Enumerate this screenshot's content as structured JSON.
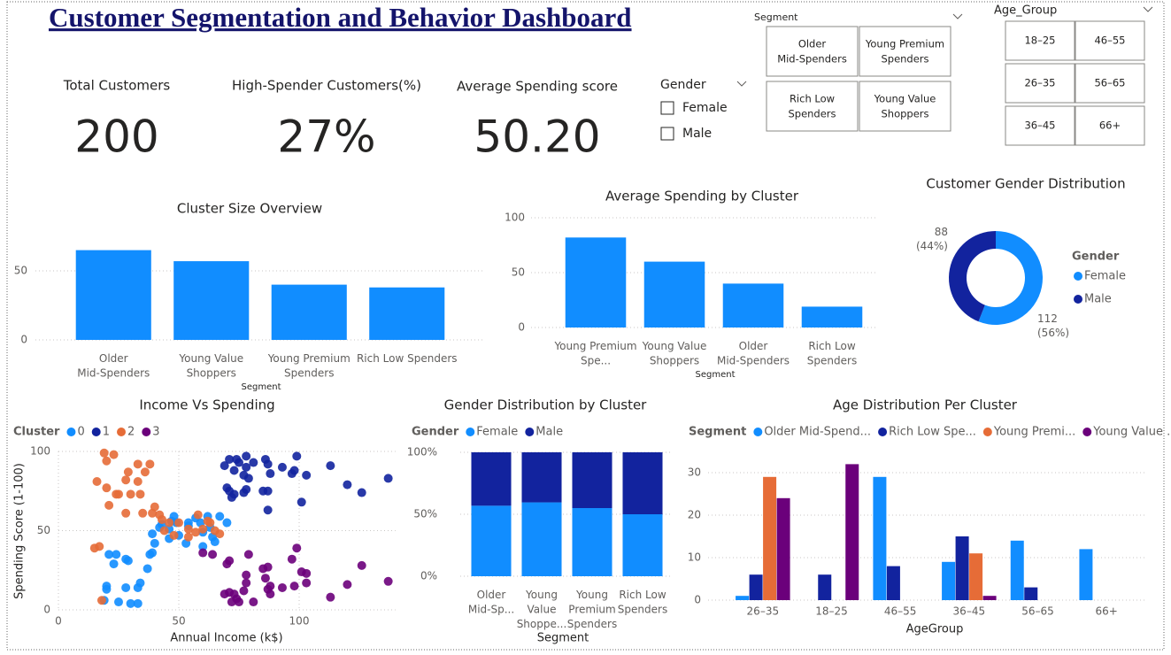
{
  "title": "Customer Segmentation and Behavior Dashboard",
  "kpis": [
    {
      "label": "Total Customers",
      "value": 200
    },
    {
      "label": "High-Spender Customers(%)",
      "value": "27%"
    },
    {
      "label": "Average Spending score",
      "value": "50.20"
    }
  ],
  "slicers": {
    "gender": {
      "title": "Gender",
      "options": [
        "Female",
        "Male"
      ]
    },
    "segment": {
      "title": "Segment",
      "options": [
        "Older Mid-Spenders",
        "Young Premium Spenders",
        "Rich Low Spenders",
        "Young Value Shoppers"
      ]
    },
    "age_group": {
      "title": "Age_Group",
      "options": [
        "18–25",
        "46–55",
        "26–35",
        "56–65",
        "36–45",
        "66+"
      ]
    }
  },
  "chart_data": [
    {
      "type": "bar",
      "title": "Cluster Size Overview",
      "x_label": "Segment",
      "categories": [
        "Older Mid-Spenders",
        "Young Value Shoppers",
        "Young Premium Spenders",
        "Rich Low Spenders"
      ],
      "values": [
        65,
        57,
        40,
        38
      ],
      "color": "#118DFF",
      "ylim": [
        0,
        75
      ],
      "yticks": [
        0,
        50
      ],
      "grid": true
    },
    {
      "type": "bar",
      "title": "Average Spending by Cluster",
      "x_label": "Segment",
      "categories": [
        "Young Premium Spe...",
        "Young Value Shoppers",
        "Older Mid-Spenders",
        "Rich Low Spenders"
      ],
      "values": [
        82,
        60,
        40,
        19
      ],
      "color": "#118DFF",
      "ylim": [
        0,
        100
      ],
      "yticks": [
        0,
        50,
        100
      ],
      "grid": true
    },
    {
      "type": "donut",
      "title": "Customer Gender Distribution",
      "legend_title": "Gender",
      "categories": [
        "Female",
        "Male"
      ],
      "values": [
        112,
        88
      ],
      "value_labels": [
        "112 (56%)",
        "88 (44%)"
      ],
      "colors": [
        "#118DFF",
        "#12239E"
      ]
    },
    {
      "type": "scatter",
      "title": "Income Vs Spending",
      "legend_title": "Cluster",
      "x_label": "Annual Income (k$)",
      "y_label": "Spending Score (1-100)",
      "xlim": [
        0,
        140
      ],
      "xticks": [
        0,
        50,
        100
      ],
      "ylim": [
        0,
        100
      ],
      "yticks": [
        0,
        50,
        100
      ],
      "grid": true,
      "series": [
        {
          "name": "0",
          "color": "#118DFF",
          "x": [
            19,
            20,
            20,
            21,
            23,
            24,
            25,
            28,
            28,
            29,
            30,
            33,
            33,
            34,
            37,
            38,
            39,
            40,
            42,
            43,
            46,
            48,
            49,
            50,
            54,
            57,
            59,
            60,
            62,
            63,
            64,
            65,
            46,
            47,
            53,
            60,
            39,
            54,
            67,
            70
          ],
          "y": [
            6,
            15,
            13,
            35,
            29,
            35,
            5,
            14,
            32,
            31,
            4,
            4,
            14,
            17,
            26,
            35,
            36,
            42,
            52,
            54,
            51,
            59,
            55,
            47,
            55,
            58,
            55,
            49,
            59,
            52,
            46,
            43,
            45,
            56,
            42,
            40,
            48,
            53,
            59,
            55
          ]
        },
        {
          "name": "1",
          "color": "#12239E",
          "x": [
            69,
            70,
            71,
            71,
            72,
            73,
            73,
            74,
            75,
            77,
            78,
            78,
            78,
            79,
            81,
            85,
            86,
            87,
            87,
            88,
            93,
            97,
            98,
            99,
            101,
            103,
            113,
            120,
            126,
            137,
            87,
            77
          ],
          "y": [
            91,
            77,
            95,
            75,
            71,
            88,
            73,
            95,
            93,
            74,
            97,
            90,
            76,
            83,
            93,
            75,
            95,
            63,
            92,
            86,
            90,
            86,
            88,
            97,
            68,
            85,
            91,
            79,
            74,
            83,
            75,
            85
          ]
        },
        {
          "name": "2",
          "color": "#E66C37",
          "x": [
            15,
            16,
            17,
            18,
            19,
            20,
            20,
            21,
            23,
            24,
            25,
            28,
            28,
            29,
            30,
            33,
            33,
            34,
            35,
            36,
            38,
            39,
            40,
            42,
            43,
            46,
            48,
            50,
            54,
            57,
            58,
            62,
            63,
            65,
            67,
            54,
            44,
            60
          ],
          "y": [
            39,
            81,
            40,
            6,
            99,
            77,
            94,
            66,
            98,
            73,
            73,
            82,
            61,
            87,
            73,
            92,
            81,
            73,
            61,
            87,
            92,
            61,
            65,
            60,
            57,
            55,
            47,
            55,
            51,
            49,
            60,
            56,
            55,
            50,
            48,
            46,
            50,
            51
          ]
        },
        {
          "name": "3",
          "color": "#6B007B",
          "x": [
            60,
            64,
            69,
            70,
            71,
            72,
            73,
            74,
            75,
            77,
            78,
            78,
            81,
            85,
            86,
            87,
            87,
            88,
            93,
            97,
            98,
            99,
            101,
            103,
            103,
            113,
            120,
            126,
            137,
            79,
            88,
            71
          ],
          "y": [
            36,
            35,
            10,
            29,
            11,
            5,
            10,
            7,
            5,
            12,
            22,
            17,
            5,
            26,
            20,
            27,
            13,
            15,
            14,
            32,
            15,
            39,
            24,
            23,
            17,
            8,
            16,
            28,
            18,
            35,
            10,
            31
          ]
        }
      ]
    },
    {
      "type": "stacked_bar_100",
      "title": "Gender Distribution by Cluster",
      "legend_title": "Gender",
      "x_label": "Segment",
      "categories": [
        "Older Mid-Sp...",
        "Young Value Shoppe...",
        "Young Premium Spenders",
        "Rich Low Spenders"
      ],
      "series": [
        {
          "name": "Female",
          "color": "#118DFF",
          "values": [
            56.9,
            59.6,
            55,
            50
          ]
        },
        {
          "name": "Male",
          "color": "#12239E",
          "values": [
            43.1,
            40.4,
            45,
            50
          ]
        }
      ],
      "ylim": [
        0,
        100
      ],
      "yticks": [
        {
          "value": 0,
          "label": "0%"
        },
        {
          "value": 50,
          "label": "50%"
        },
        {
          "value": 100,
          "label": "100%"
        }
      ],
      "grid": true
    },
    {
      "type": "grouped_bar",
      "title": "Age Distribution Per Cluster",
      "legend_title": "Segment",
      "x_label": "AgeGroup",
      "categories": [
        "26–35",
        "18–25",
        "46–55",
        "36–45",
        "56–65",
        "66+"
      ],
      "series": [
        {
          "name": "Older Mid-Spend...",
          "color": "#118DFF",
          "values": [
            1,
            null,
            29,
            9,
            14,
            12
          ]
        },
        {
          "name": "Rich Low Spe...",
          "color": "#12239E",
          "values": [
            6,
            6,
            8,
            15,
            3,
            null
          ]
        },
        {
          "name": "Young Premi...",
          "color": "#E66C37",
          "values": [
            29,
            null,
            null,
            11,
            null,
            null
          ]
        },
        {
          "name": "Young Value ...",
          "color": "#6B007B",
          "values": [
            24,
            32,
            null,
            1,
            null,
            null
          ]
        }
      ],
      "ylim": [
        0,
        35
      ],
      "yticks": [
        0,
        10,
        20,
        30
      ],
      "grid": true
    }
  ]
}
